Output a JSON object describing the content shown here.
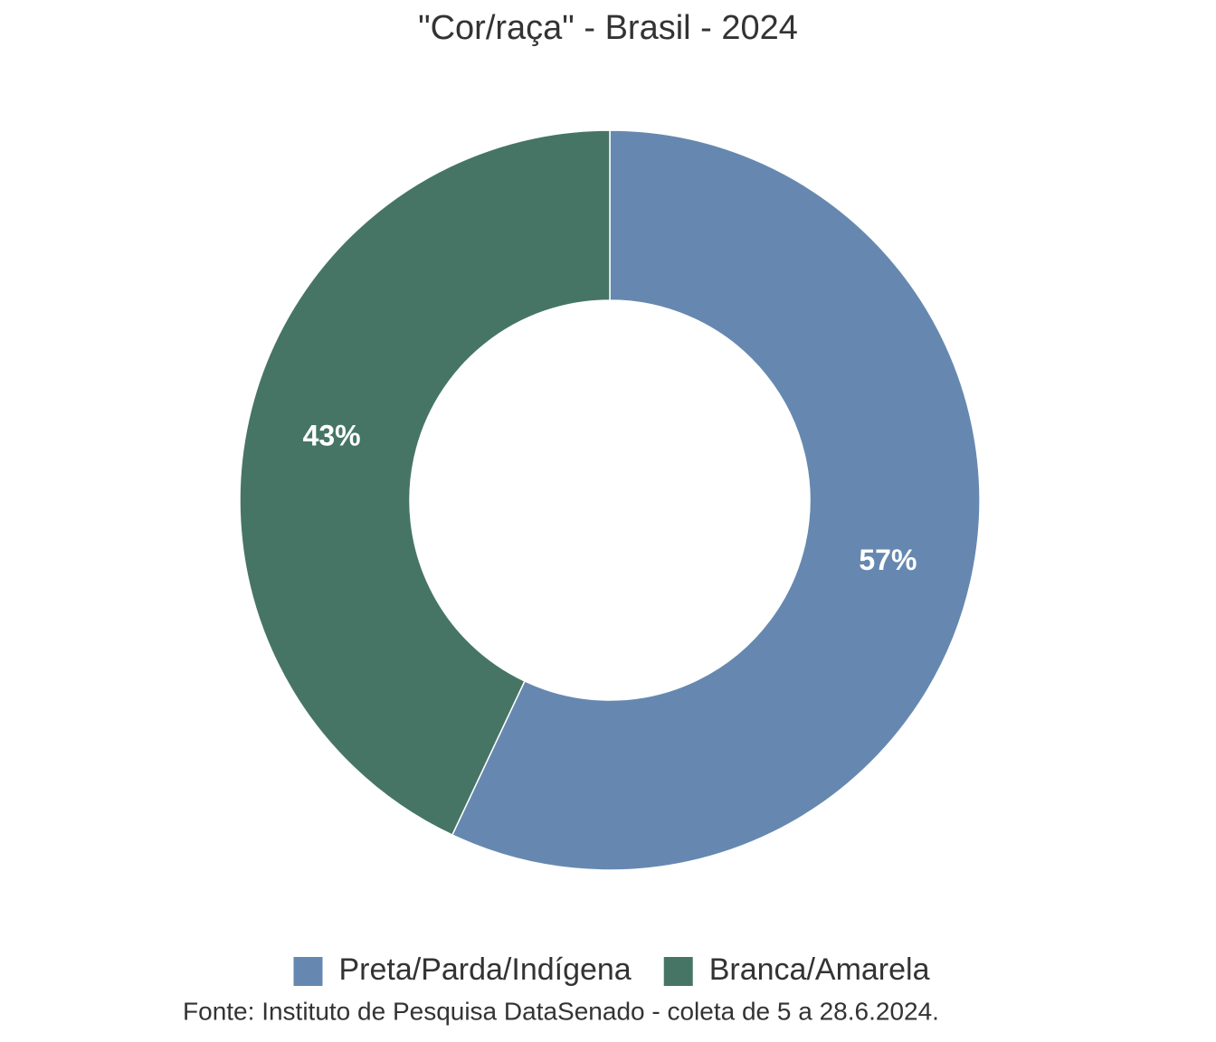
{
  "chart_data": {
    "type": "donut",
    "title": "\"Cor/raça\" - Brasil - 2024",
    "categories": [
      "Preta/Parda/Indígena",
      "Branca/Amarela"
    ],
    "values": [
      57,
      43
    ],
    "value_labels": [
      "57%",
      "43%"
    ],
    "colors": [
      "#6688b0",
      "#467565"
    ],
    "legend": "bottom",
    "caption": "Fonte: Instituto de Pesquisa DataSenado - coleta de 5 a 28.6.2024."
  }
}
